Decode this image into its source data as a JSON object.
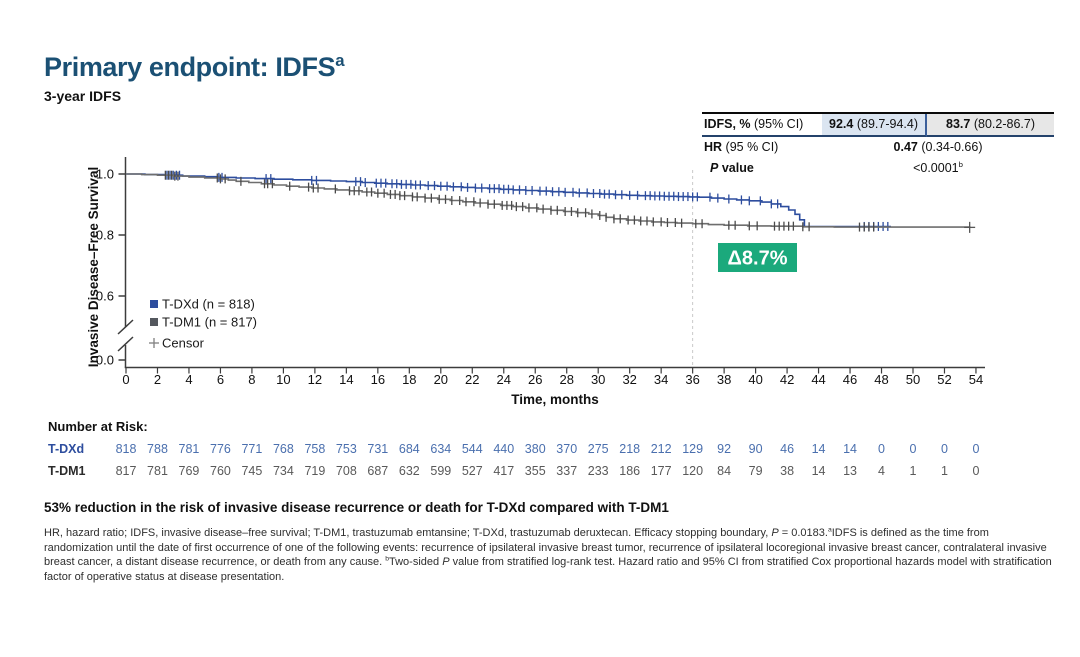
{
  "slide": {
    "title_rich": [
      {
        "t": "Primary endpoint: IDFS"
      },
      {
        "t": "a",
        "sup": true
      }
    ],
    "title_color": "#1b5074",
    "subtitle": "3-year IDFS",
    "conclusion": "53% reduction in the risk of invasive disease recurrence or death for T-DXd compared with T-DM1",
    "footnote_rich": [
      {
        "t": "HR, hazard ratio; IDFS, invasive disease–free survival; T-DM1, trastuzumab emtansine; T-DXd, trastuzumab deruxtecan. Efficacy stopping boundary, "
      },
      {
        "t": "P",
        "i": true
      },
      {
        "t": " = 0.0183."
      },
      {
        "t": "a",
        "sup": true
      },
      {
        "t": "IDFS is defined as the time from randomization until the date of first occurrence of one of the following events: recurrence of ipsilateral invasive breast tumor, recurrence of ipsilateral locoregional invasive breast cancer, contralateral invasive breast cancer, a distant disease recurrence, or death from any cause. "
      },
      {
        "t": "b",
        "sup": true
      },
      {
        "t": "Two-sided "
      },
      {
        "t": "P",
        "i": true
      },
      {
        "t": " value from stratified log-rank test. Hazard ratio and 95% CI from stratified Cox proportional hazards model with stratification factor of operative status at disease presentation."
      }
    ]
  },
  "results_table": {
    "highlight_colors": [
      "#dbe5f1",
      "#e7e7e7"
    ],
    "rows": [
      {
        "label": [
          {
            "t": "IDFS, %",
            "b": true
          },
          {
            "t": " (95% CI)"
          }
        ],
        "values": [
          [
            {
              "t": "92.4",
              "b": true
            },
            {
              "t": " (89.7-94.4)"
            }
          ],
          [
            {
              "t": "83.7",
              "b": true
            },
            {
              "t": " (80.2-86.7)"
            }
          ]
        ]
      },
      {
        "label": [
          {
            "t": "HR",
            "b": true
          },
          {
            "t": " (95 % CI)"
          }
        ],
        "value": [
          {
            "t": "0.47",
            "b": true
          },
          {
            "t": " (0.34-0.66)"
          }
        ]
      },
      {
        "label": [
          {
            "t": "P",
            "b": true,
            "i": true
          },
          {
            "t": " value",
            "b": true
          }
        ],
        "value": [
          {
            "t": "<0.0001"
          },
          {
            "t": "b",
            "sup": true
          }
        ]
      }
    ]
  },
  "chart_data": {
    "type": "line",
    "subtype": "kaplan-meier-step",
    "title": "",
    "xlabel": "Time, months",
    "ylabel": "Invasive Disease–Free Survival",
    "xlim": [
      0,
      54
    ],
    "xticks": [
      0,
      2,
      4,
      6,
      8,
      10,
      12,
      14,
      16,
      18,
      20,
      22,
      24,
      26,
      28,
      30,
      32,
      34,
      36,
      38,
      40,
      42,
      44,
      46,
      48,
      50,
      52,
      54
    ],
    "yticks": [
      {
        "v": 1.0,
        "label": "1.0"
      },
      {
        "v": 0.8,
        "label": "0.8"
      },
      {
        "v": 0.6,
        "label": "0.6"
      },
      {
        "v": 0.0,
        "label": "0.0"
      }
    ],
    "y_axis_break": true,
    "milestone_month": 36,
    "annotation": {
      "label": "Δ8.7%",
      "bg": "#1ba97c",
      "text_color": "#ffffff"
    },
    "legend_censor_label": "Censor",
    "series": [
      {
        "name": "T-DXd",
        "n": 818,
        "legend": "T-DXd (n = 818)",
        "color": "#2d4d9e",
        "censor_color": "#2d4d9e",
        "points": [
          [
            0,
            1.0
          ],
          [
            1.2,
            0.998
          ],
          [
            2.4,
            0.996
          ],
          [
            3.6,
            0.993
          ],
          [
            5,
            0.991
          ],
          [
            5.8,
            0.989
          ],
          [
            7,
            0.987
          ],
          [
            8.2,
            0.985
          ],
          [
            9.4,
            0.983
          ],
          [
            10.6,
            0.981
          ],
          [
            11.8,
            0.979
          ],
          [
            13,
            0.977
          ],
          [
            14,
            0.975
          ],
          [
            15,
            0.972
          ],
          [
            15.8,
            0.97
          ],
          [
            16.6,
            0.968
          ],
          [
            17.4,
            0.966
          ],
          [
            18.2,
            0.964
          ],
          [
            19,
            0.962
          ],
          [
            19.8,
            0.96
          ],
          [
            20.6,
            0.958
          ],
          [
            21.4,
            0.956
          ],
          [
            22.2,
            0.954
          ],
          [
            23,
            0.952
          ],
          [
            23.8,
            0.95
          ],
          [
            24.6,
            0.948
          ],
          [
            25.4,
            0.946
          ],
          [
            26.2,
            0.944
          ],
          [
            27,
            0.942
          ],
          [
            27.8,
            0.94
          ],
          [
            28.6,
            0.938
          ],
          [
            29.4,
            0.936
          ],
          [
            30.2,
            0.934
          ],
          [
            31,
            0.932
          ],
          [
            31.8,
            0.93
          ],
          [
            32.6,
            0.929
          ],
          [
            33.4,
            0.928
          ],
          [
            34.2,
            0.927
          ],
          [
            35,
            0.926
          ],
          [
            35.8,
            0.925
          ],
          [
            36.4,
            0.924
          ],
          [
            37.2,
            0.921
          ],
          [
            38,
            0.918
          ],
          [
            38.8,
            0.915
          ],
          [
            39.6,
            0.912
          ],
          [
            40.4,
            0.908
          ],
          [
            41,
            0.902
          ],
          [
            41.6,
            0.893
          ],
          [
            42.1,
            0.882
          ],
          [
            42.5,
            0.868
          ],
          [
            42.8,
            0.85
          ],
          [
            43.1,
            0.828
          ],
          [
            48.6,
            0.828
          ]
        ],
        "censors": [
          2.6,
          2.8,
          3,
          3.2,
          3.4,
          5.9,
          6.1,
          8.9,
          9.2,
          11.8,
          12.1,
          14.6,
          14.9,
          15.2,
          15.9,
          16.2,
          16.5,
          16.9,
          17.2,
          17.5,
          17.8,
          18.1,
          18.4,
          18.7,
          19.2,
          19.6,
          20,
          20.4,
          20.8,
          21.3,
          21.7,
          22.2,
          22.6,
          23.1,
          23.4,
          23.7,
          24,
          24.3,
          24.6,
          25,
          25.4,
          25.8,
          26.3,
          26.7,
          27.1,
          27.5,
          27.9,
          28.4,
          28.8,
          29.3,
          29.7,
          30.1,
          30.4,
          30.7,
          31.1,
          31.5,
          32,
          32.5,
          33,
          33.3,
          33.6,
          33.9,
          34.2,
          34.5,
          34.8,
          35.1,
          35.4,
          35.7,
          36,
          36.3,
          37.1,
          37.6,
          38.3,
          39.1,
          39.6,
          40.3,
          41,
          41.4,
          46.9,
          47.2,
          47.5,
          47.8,
          48.1,
          48.4
        ]
      },
      {
        "name": "T-DM1",
        "n": 817,
        "legend": "T-DM1 (n = 817)",
        "color": "#6e6e6e",
        "censor_color": "#4a4a4a",
        "marker_color": "#54585e",
        "points": [
          [
            0,
            1.0
          ],
          [
            1,
            0.998
          ],
          [
            2,
            0.996
          ],
          [
            3,
            0.993
          ],
          [
            4,
            0.99
          ],
          [
            5,
            0.987
          ],
          [
            6,
            0.984
          ],
          [
            6.5,
            0.98
          ],
          [
            7,
            0.976
          ],
          [
            7.8,
            0.972
          ],
          [
            8.6,
            0.968
          ],
          [
            9.4,
            0.964
          ],
          [
            10.2,
            0.96
          ],
          [
            11,
            0.957
          ],
          [
            11.8,
            0.954
          ],
          [
            12.6,
            0.951
          ],
          [
            13.4,
            0.948
          ],
          [
            14.2,
            0.945
          ],
          [
            15,
            0.941
          ],
          [
            15.8,
            0.937
          ],
          [
            16.6,
            0.933
          ],
          [
            17.4,
            0.929
          ],
          [
            18.2,
            0.925
          ],
          [
            19,
            0.921
          ],
          [
            19.8,
            0.917
          ],
          [
            20.6,
            0.913
          ],
          [
            21.4,
            0.909
          ],
          [
            22.2,
            0.905
          ],
          [
            23,
            0.901
          ],
          [
            23.8,
            0.897
          ],
          [
            24.6,
            0.893
          ],
          [
            25.4,
            0.889
          ],
          [
            26.2,
            0.885
          ],
          [
            27,
            0.881
          ],
          [
            27.8,
            0.877
          ],
          [
            28.6,
            0.873
          ],
          [
            29.4,
            0.869
          ],
          [
            30,
            0.864
          ],
          [
            30.5,
            0.858
          ],
          [
            31,
            0.853
          ],
          [
            31.8,
            0.849
          ],
          [
            32.6,
            0.846
          ],
          [
            33.4,
            0.843
          ],
          [
            34.2,
            0.841
          ],
          [
            35,
            0.839
          ],
          [
            36,
            0.837
          ],
          [
            37,
            0.834
          ],
          [
            38,
            0.832
          ],
          [
            39.5,
            0.83
          ],
          [
            41,
            0.829
          ],
          [
            43,
            0.827
          ],
          [
            45,
            0.826
          ],
          [
            53.6,
            0.825
          ]
        ],
        "censors": [
          2.5,
          2.7,
          2.9,
          3.1,
          3.3,
          5.8,
          6,
          6.3,
          7.3,
          8.8,
          9,
          9.3,
          10.4,
          11.6,
          11.9,
          12.2,
          13.3,
          14.2,
          14.5,
          14.8,
          15.3,
          15.6,
          16,
          16.4,
          16.8,
          17.1,
          17.4,
          17.7,
          18.2,
          18.5,
          19,
          19.4,
          19.9,
          20.3,
          20.7,
          21.2,
          21.6,
          22.1,
          22.5,
          23,
          23.4,
          23.9,
          24.2,
          24.5,
          24.8,
          25.2,
          25.6,
          26.1,
          26.5,
          27,
          27.4,
          27.9,
          28.3,
          28.7,
          29.2,
          29.6,
          30.1,
          30.5,
          31,
          31.4,
          31.9,
          32.3,
          32.7,
          33.1,
          33.5,
          34,
          34.4,
          34.9,
          35.3,
          36.2,
          36.6,
          38.3,
          38.7,
          39.6,
          40.1,
          41.2,
          41.5,
          41.8,
          42.1,
          42.4,
          43,
          43.4,
          46.6,
          46.9,
          47.2,
          47.5
        ],
        "final_censor_month": 53.6
      }
    ]
  },
  "risk_table": {
    "header": "Number at Risk:",
    "months": [
      0,
      2,
      4,
      6,
      8,
      10,
      12,
      14,
      16,
      18,
      20,
      22,
      24,
      26,
      28,
      30,
      32,
      34,
      36,
      38,
      40,
      42,
      44,
      46,
      48,
      50,
      52,
      54
    ],
    "rows": [
      {
        "label": "T-DXd",
        "label_color": "#2d4d9e",
        "num_color": "#4a6fae",
        "values": [
          818,
          788,
          781,
          776,
          771,
          768,
          758,
          753,
          731,
          684,
          634,
          544,
          440,
          380,
          370,
          275,
          218,
          212,
          129,
          92,
          90,
          46,
          14,
          14,
          0,
          0,
          0,
          0
        ]
      },
      {
        "label": "T-DM1",
        "label_color": "#2b2b2b",
        "num_color": "#595959",
        "values": [
          817,
          781,
          769,
          760,
          745,
          734,
          719,
          708,
          687,
          632,
          599,
          527,
          417,
          355,
          337,
          233,
          186,
          177,
          120,
          84,
          79,
          38,
          14,
          13,
          4,
          1,
          1,
          0
        ]
      }
    ]
  }
}
